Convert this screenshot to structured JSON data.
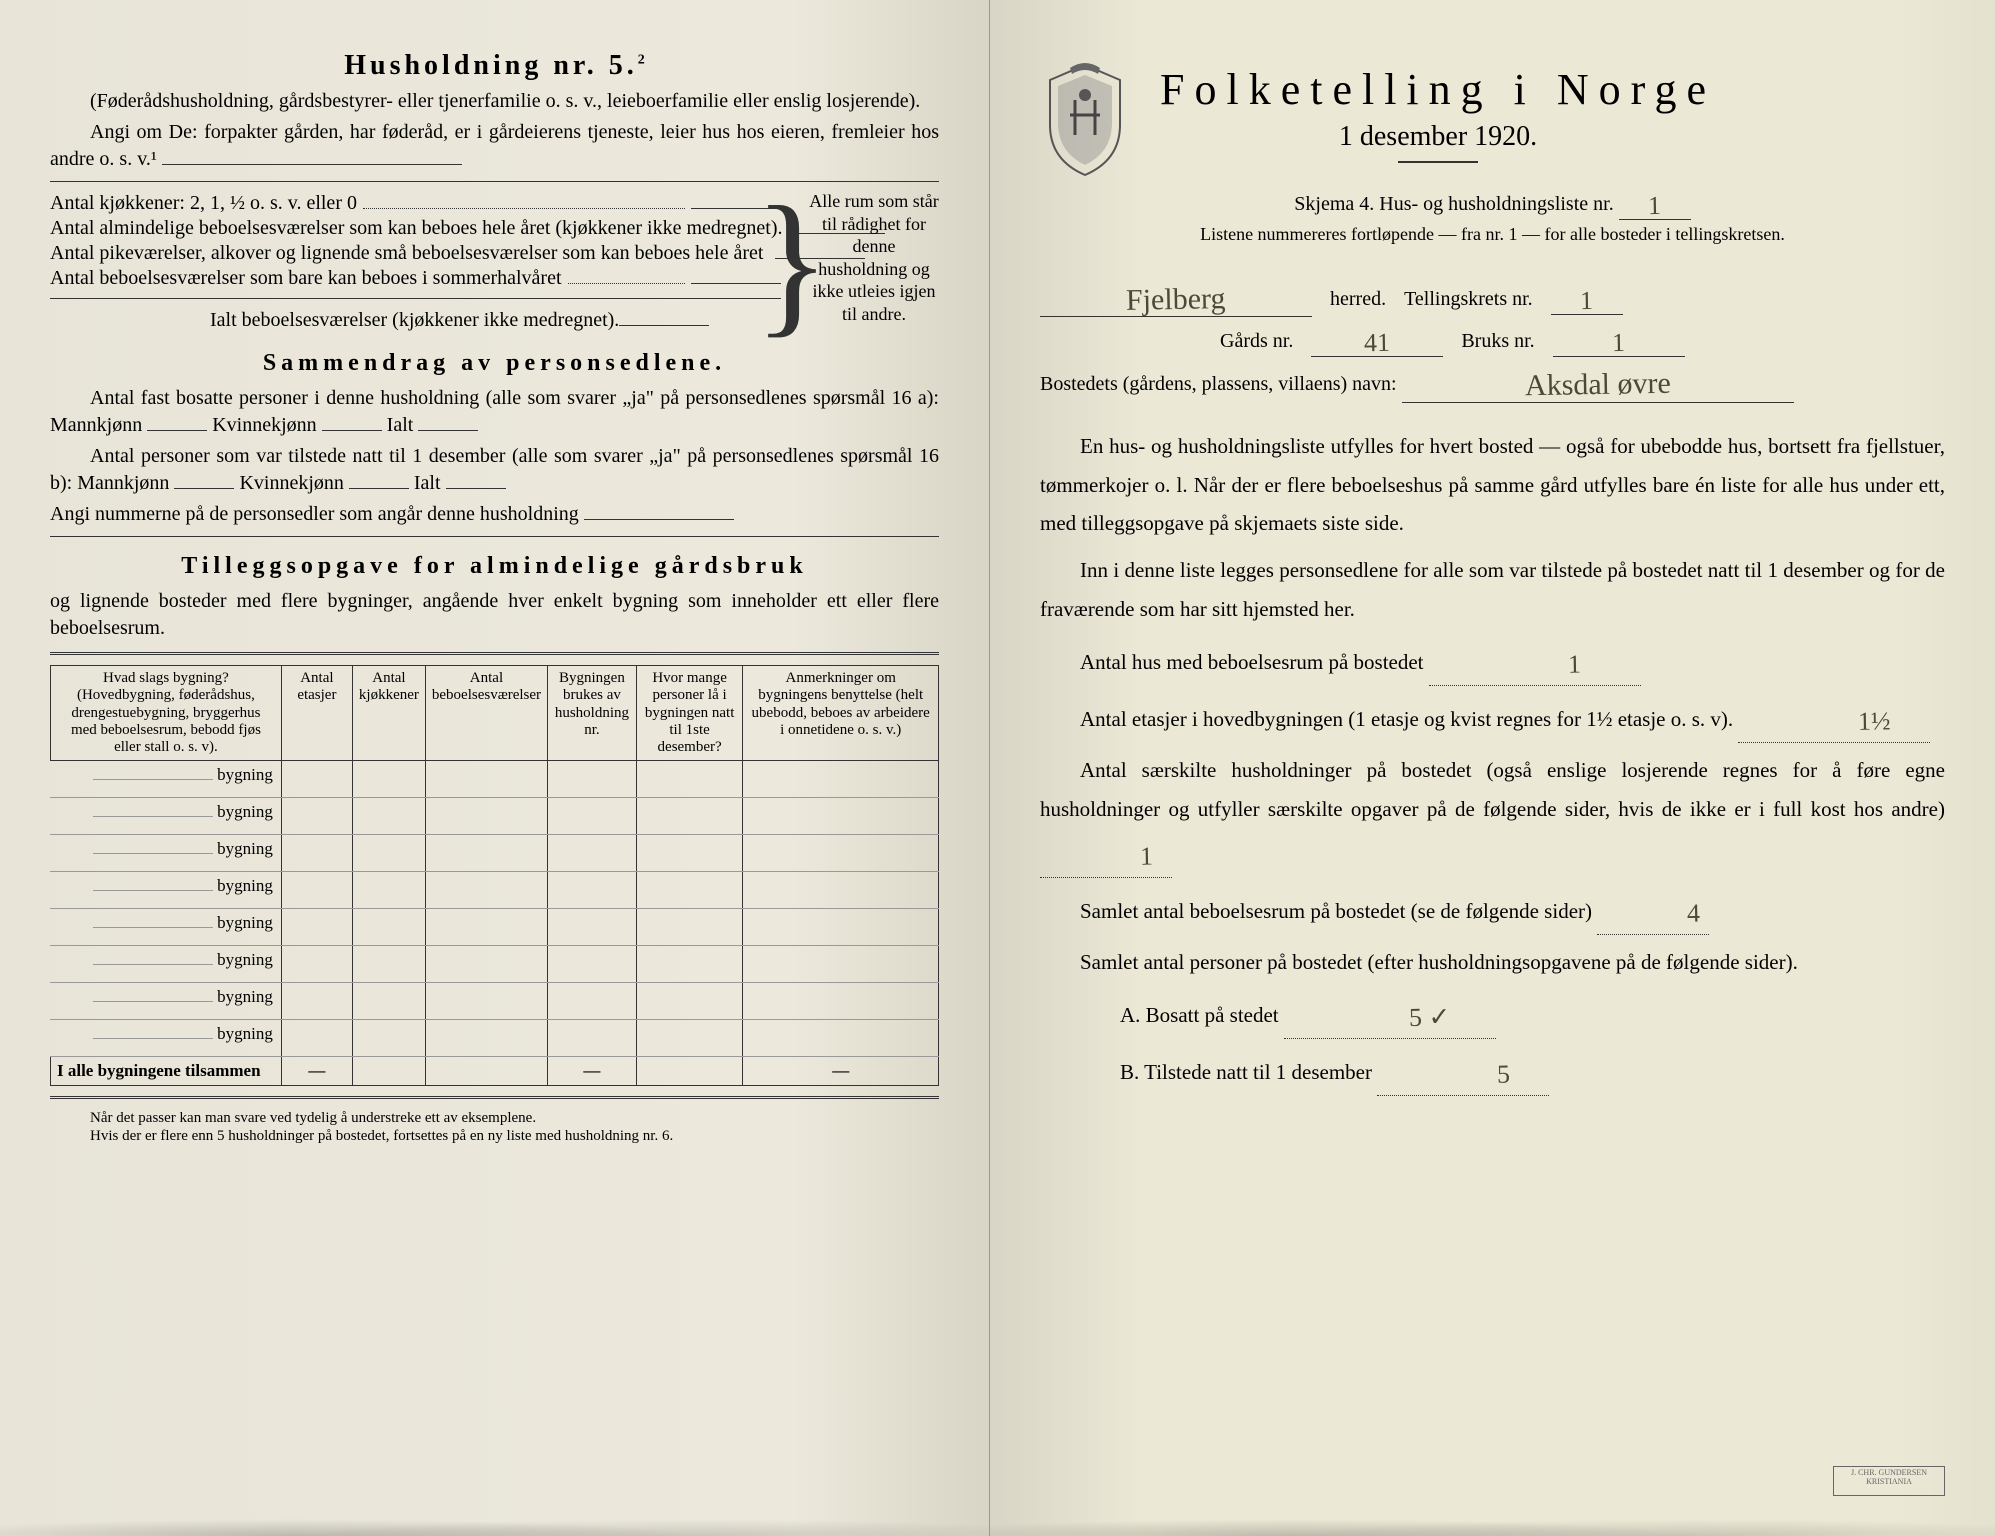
{
  "left": {
    "heading": "Husholdning nr. 5.",
    "heading_sup": "2",
    "sub1": "(Føderådshusholdning, gårdsbestyrer- eller tjenerfamilie o. s. v., leieboerfamilie eller enslig losjerende).",
    "sub2": "Angi om De:  forpakter gården, har føderåd, er i gårdeierens tjeneste, leier hus hos eieren, fremleier hos andre o. s. v.¹",
    "kitchens": "Antal kjøkkener: 2, 1, ½ o. s. v. eller 0",
    "rooms_year": "Antal almindelige beboelsesværelser som kan beboes hele året (kjøkkener ikke medregnet).",
    "maid_rooms": "Antal pikeværelser, alkover og lignende små beboelsesværelser som kan beboes hele året",
    "summer_rooms": "Antal beboelsesværelser som bare kan beboes i sommerhalvåret",
    "ialt_label": "Ialt beboelsesværelser (kjøkkener ikke medregnet).",
    "brace_note": "Alle rum som står til rådighet for denne husholdning og ikke utleies igjen til andre.",
    "sammendrag": "Sammendrag av personsedlene.",
    "fast_bosatte": "Antal fast bosatte personer i denne husholdning (alle som svarer „ja\" på personsedlenes spørsmål 16 a): Mannkjønn",
    "kvinne": "Kvinnekjønn",
    "ialt": "Ialt",
    "tilstede": "Antal personer som var tilstede natt til 1 desember (alle som svarer „ja\" på personsedlenes spørsmål 16 b): Mannkjønn",
    "angi_num": "Angi nummerne på de personsedler som angår denne husholdning",
    "tillegg_title": "Tilleggsopgave for almindelige gårdsbruk",
    "tillegg_sub": "og lignende bosteder med flere bygninger, angående hver enkelt bygning som inneholder ett eller flere beboelsesrum.",
    "table": {
      "headers": [
        "Hvad slags bygning?\n(Hovedbygning, føderådshus, drengestuebygning, bryggerhus med beboelsesrum, bebodd fjøs eller stall o. s. v).",
        "Antal etasjer",
        "Antal kjøkkener",
        "Antal beboelsesværelser",
        "Bygningen brukes av husholdning nr.",
        "Hvor mange personer lå i bygningen natt til 1ste desember?",
        "Anmerkninger om bygningens benyttelse (helt ubebodd, beboes av arbeidere i onnetidene o. s. v.)"
      ],
      "row_label": "bygning",
      "row_count": 8,
      "footer": "I alle bygningene tilsammen",
      "dash": "—"
    },
    "foot1": "Når det passer kan man svare ved tydelig å understreke ett av eksemplene.",
    "foot2": "Hvis der er flere enn 5 husholdninger på bostedet, fortsettes på en ny liste med husholdning nr. 6."
  },
  "right": {
    "title": "Folketelling i Norge",
    "date": "1 desember 1920.",
    "skjema": "Skjema 4.  Hus- og husholdningsliste nr.",
    "skjema_val": "1",
    "listene": "Listene nummereres fortløpende — fra nr. 1 — for alle bosteder i tellingskretsen.",
    "herred_val": "Fjelberg",
    "herred_lbl": "herred.",
    "tkrets_lbl": "Tellingskrets nr.",
    "tkrets_val": "1",
    "gards_lbl": "Gårds nr.",
    "gards_val": "41",
    "bruks_lbl": "Bruks nr.",
    "bruks_val": "1",
    "bosted_lbl": "Bostedets (gårdens, plassens, villaens) navn:",
    "bosted_val": "Aksdal øvre",
    "body1": "En hus- og husholdningsliste utfylles for hvert bosted — også for ubebodde hus, bortsett fra fjellstuer, tømmerkojer o. l.  Når der er flere beboelseshus på samme gård utfylles bare én liste for alle hus under ett, med tilleggsopgave på skjemaets siste side.",
    "body2": "Inn i denne liste legges personsedlene for alle som var tilstede på bostedet natt til 1 desember og for de fraværende som har sitt hjemsted her.",
    "antal_hus": "Antal hus med beboelsesrum på bostedet",
    "antal_hus_val": "1",
    "etasjer": "Antal etasjer i hovedbygningen (1 etasje og kvist regnes for 1½ etasje o. s. v).",
    "etasjer_val": "1½",
    "saerskilte": "Antal særskilte husholdninger på bostedet (også enslige losjerende regnes for å føre egne husholdninger og utfyller særskilte opgaver på de følgende sider, hvis de ikke er i full kost hos andre)",
    "saerskilte_val": "1",
    "samlet_rum": "Samlet antal beboelsesrum på bostedet (se de følgende sider)",
    "samlet_rum_val": "4",
    "samlet_pers": "Samlet antal personer på bostedet (efter husholdningsopgavene på de følgende sider).",
    "a_lbl": "A.  Bosatt på stedet",
    "a_val": "5 ✓",
    "b_lbl": "B.  Tilstede natt til 1 desember",
    "b_val": "5"
  }
}
